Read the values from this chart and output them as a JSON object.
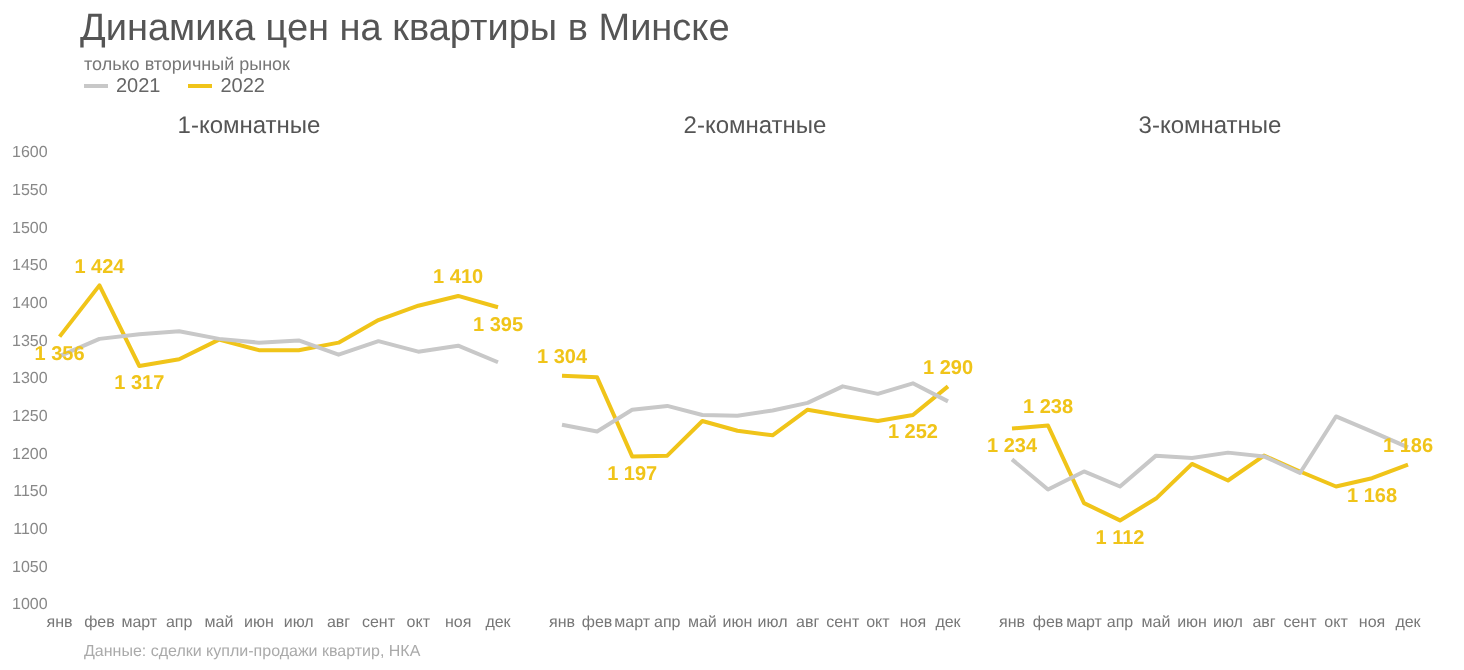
{
  "chart_data": [
    {
      "type": "other",
      "title": "Динамика цен на квартиры в Минске",
      "subtitle": "только вторичный рынок",
      "annotations": [
        "Данные: сделки купли-продажи квартир, НКА"
      ]
    },
    {
      "type": "line",
      "title": "1-комнатные",
      "legend": "top left",
      "categories": [
        "янв",
        "фев",
        "март",
        "апр",
        "май",
        "июн",
        "июл",
        "авг",
        "сент",
        "окт",
        "ноя",
        "дек"
      ],
      "ylim": [
        1000,
        1600
      ],
      "yticks": [
        1000,
        1050,
        1100,
        1150,
        1200,
        1250,
        1300,
        1350,
        1400,
        1450,
        1500,
        1550,
        1600
      ],
      "grid": false,
      "series": [
        {
          "name": "2021",
          "color": "#c8c8c8",
          "values": [
            1330,
            1353,
            1359,
            1363,
            1353,
            1348,
            1351,
            1332,
            1350,
            1336,
            1344,
            1322
          ]
        },
        {
          "name": "2022",
          "color": "#f0c419",
          "values": [
            1356,
            1424,
            1317,
            1326,
            1352,
            1338,
            1338,
            1348,
            1378,
            1397,
            1410,
            1395
          ],
          "value_labels": [
            "1 356",
            "1 424",
            "1 317",
            null,
            null,
            null,
            null,
            null,
            null,
            null,
            "1 410",
            "1 395"
          ]
        }
      ]
    },
    {
      "type": "line",
      "title": "2-комнатные",
      "categories": [
        "янв",
        "фев",
        "март",
        "апр",
        "май",
        "июн",
        "июл",
        "авг",
        "сент",
        "окт",
        "ноя",
        "дек"
      ],
      "ylim": [
        1000,
        1600
      ],
      "yticks": [
        1000,
        1050,
        1100,
        1150,
        1200,
        1250,
        1300,
        1350,
        1400,
        1450,
        1500,
        1550,
        1600
      ],
      "tick_labels": "x",
      "grid": false,
      "series": [
        {
          "color": "#c8c8c8",
          "values": [
            1239,
            1230,
            1259,
            1264,
            1252,
            1251,
            1258,
            1268,
            1290,
            1280,
            1294,
            1270
          ]
        },
        {
          "color": "#f0c419",
          "values": [
            1304,
            1302,
            1197,
            1198,
            1244,
            1231,
            1225,
            1259,
            1251,
            1244,
            1252,
            1290
          ],
          "value_labels": [
            "1 304",
            null,
            "1 197",
            null,
            null,
            null,
            null,
            null,
            null,
            null,
            "1 252",
            "1 290"
          ]
        }
      ]
    },
    {
      "type": "line",
      "title": "3-комнатные",
      "categories": [
        "янв",
        "фев",
        "март",
        "апр",
        "май",
        "июн",
        "июл",
        "авг",
        "сент",
        "окт",
        "ноя",
        "дек"
      ],
      "ylim": [
        1000,
        1600
      ],
      "yticks": [
        1000,
        1050,
        1100,
        1150,
        1200,
        1250,
        1300,
        1350,
        1400,
        1450,
        1500,
        1550,
        1600
      ],
      "tick_labels": "x",
      "grid": false,
      "series": [
        {
          "color": "#c8c8c8",
          "values": [
            1193,
            1153,
            1177,
            1157,
            1198,
            1195,
            1202,
            1197,
            1175,
            1250,
            1230,
            1209
          ]
        },
        {
          "color": "#f0c419",
          "values": [
            1234,
            1238,
            1135,
            1112,
            1141,
            1187,
            1165,
            1198,
            1177,
            1157,
            1168,
            1186
          ],
          "value_labels": [
            "1 234",
            "1 238",
            null,
            "1 112",
            null,
            null,
            null,
            null,
            null,
            null,
            "1 168",
            "1 186"
          ]
        }
      ]
    }
  ]
}
